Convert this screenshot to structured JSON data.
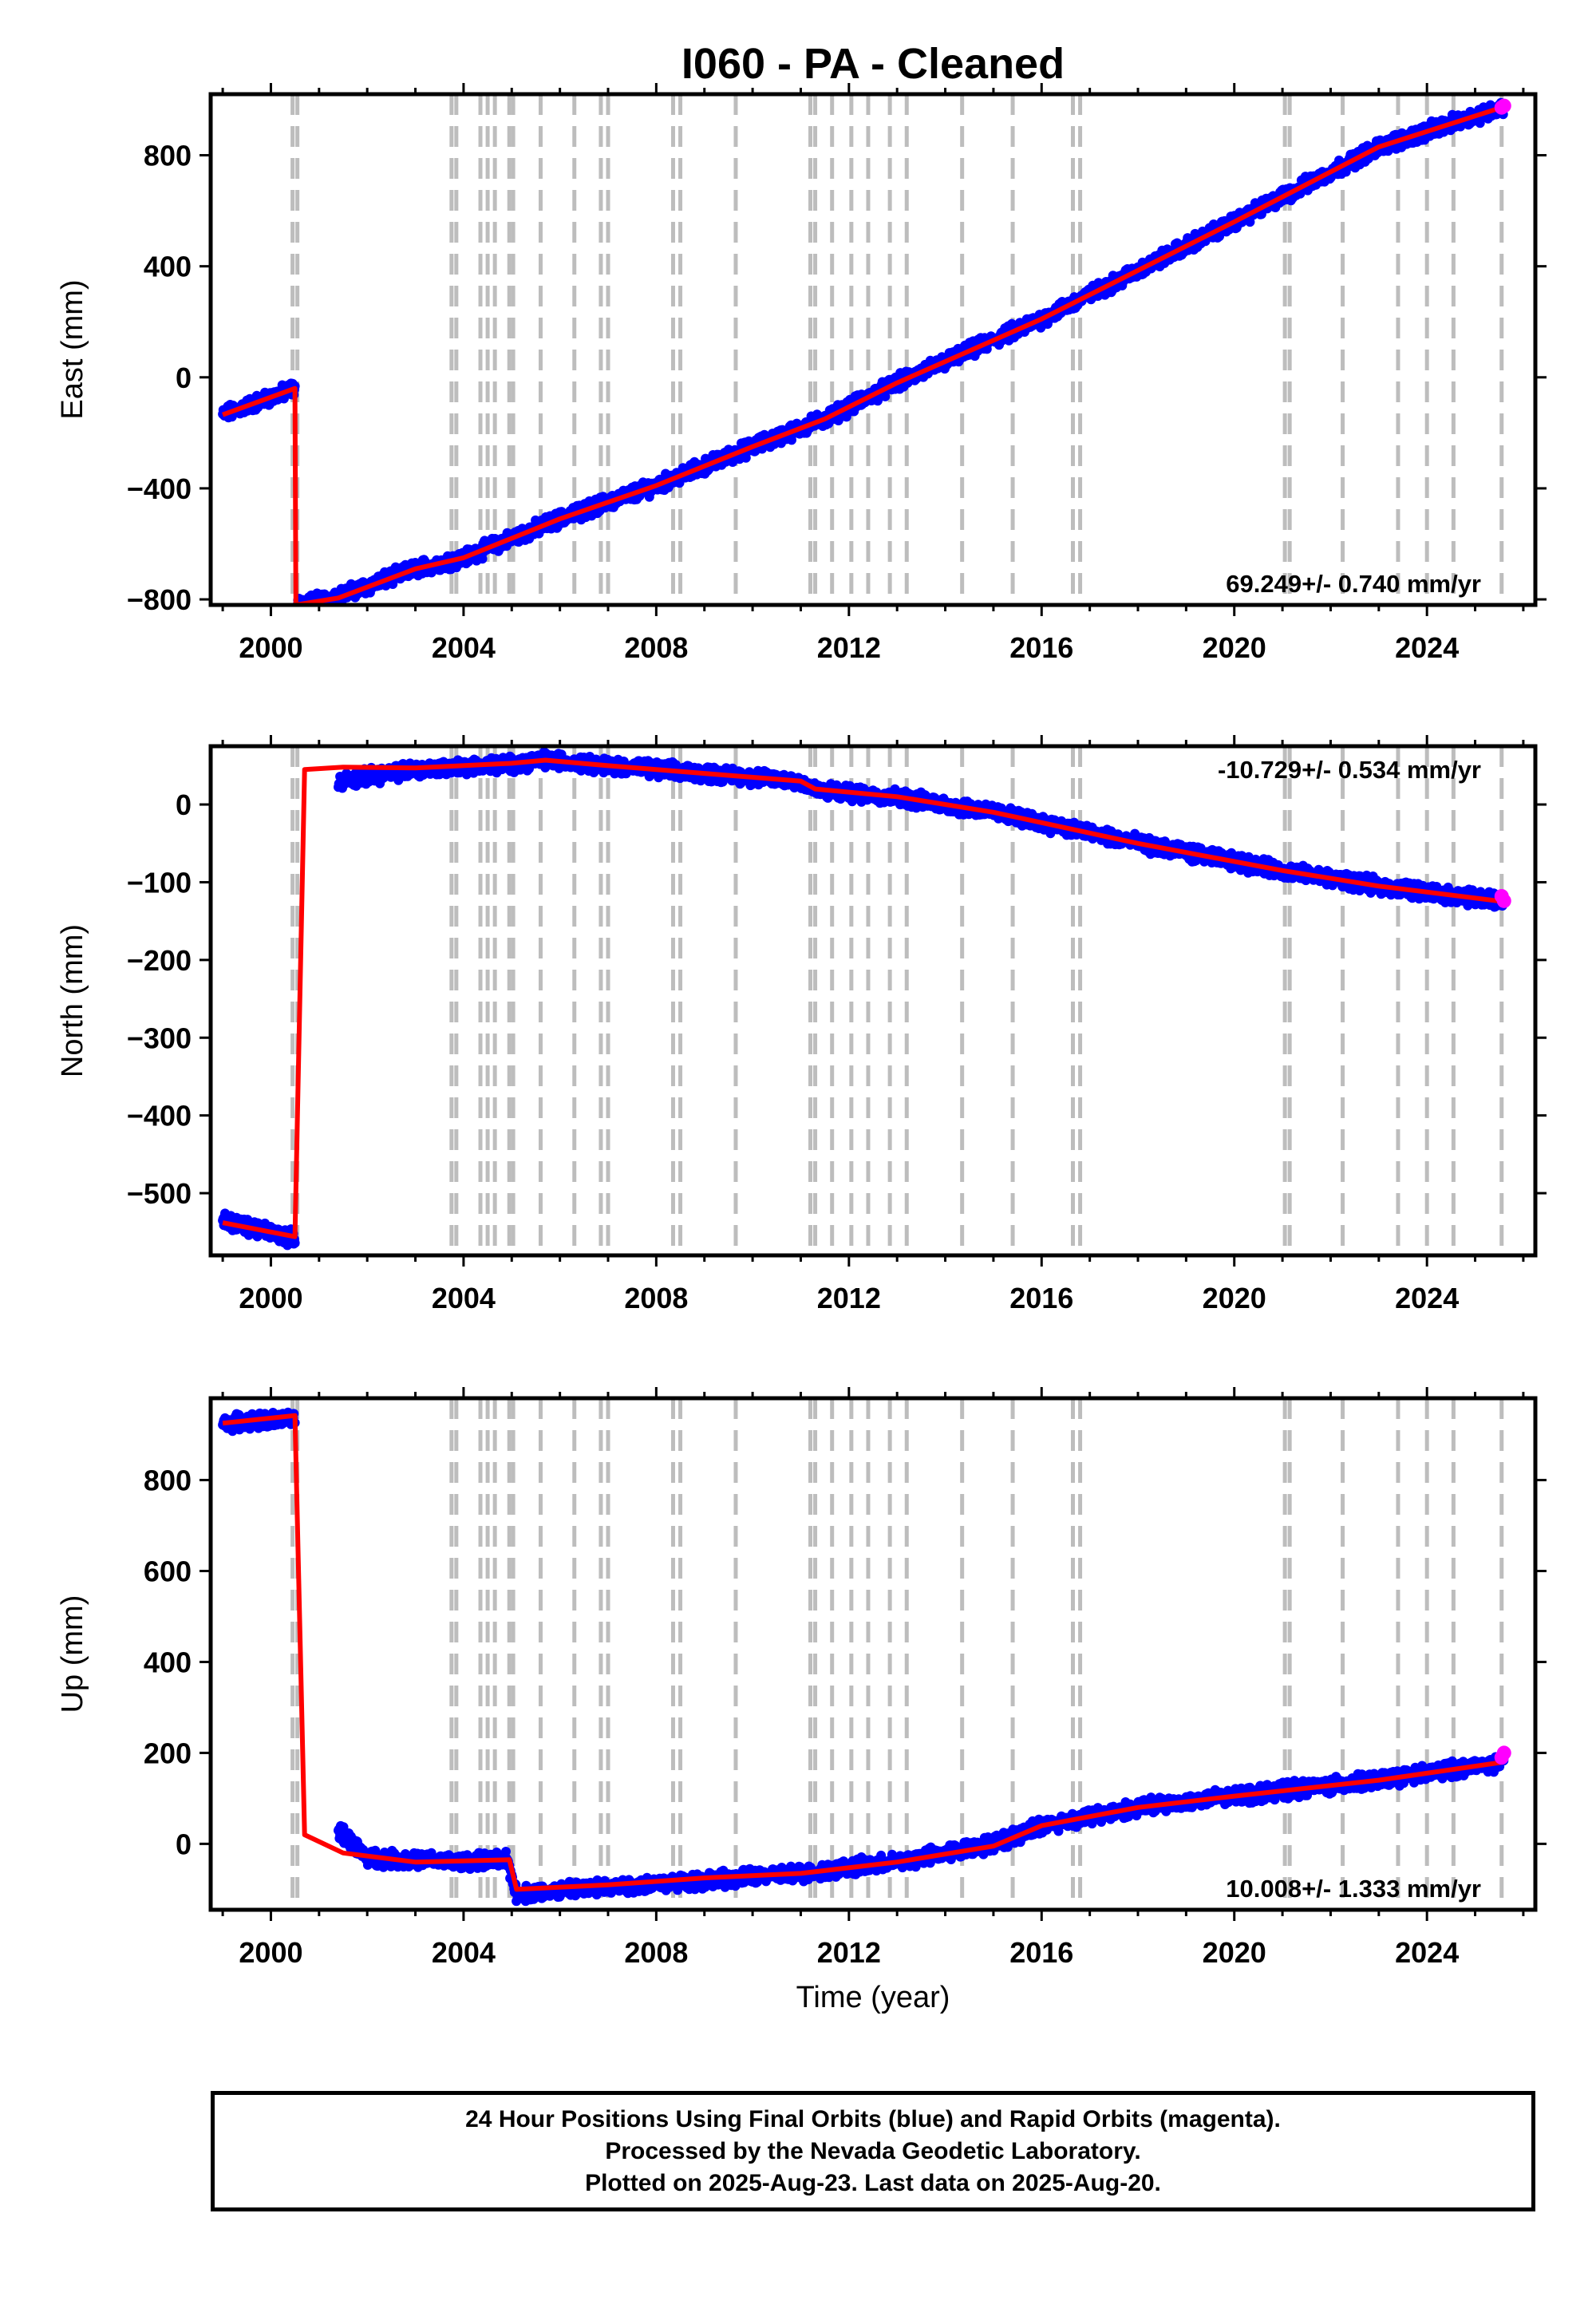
{
  "chart_data": {
    "type": "scatter",
    "title": "I060  - PA - Cleaned",
    "xlabel": "Time (year)",
    "xlim": [
      1998.75,
      2026.25
    ],
    "xticks": [
      2000,
      2004,
      2008,
      2012,
      2016,
      2020,
      2024
    ],
    "grid": false,
    "colors": {
      "final_orbits": "#0000ff",
      "rapid_orbits": "#ff00ff",
      "model": "#ff0000",
      "events": "#bdbdbd"
    },
    "event_lines": [
      2000.45,
      2000.55,
      2003.75,
      2003.85,
      2004.35,
      2004.5,
      2004.65,
      2004.95,
      2005.03,
      2005.6,
      2006.3,
      2006.85,
      2007.0,
      2008.35,
      2008.5,
      2009.65,
      2011.2,
      2011.3,
      2011.65,
      2012.05,
      2012.4,
      2012.85,
      2013.2,
      2014.35,
      2015.4,
      2016.65,
      2016.8,
      2021.05,
      2021.15,
      2022.25,
      2023.4,
      2024.0,
      2024.55,
      2025.55
    ],
    "panels": [
      {
        "ylabel": "East (mm)",
        "ylim": [
          -820,
          1020
        ],
        "yticks": [
          -800,
          -400,
          0,
          400,
          800
        ],
        "rate": "69.249+/- 0.740 mm/yr",
        "rate_position": "bottom-right",
        "series": [
          {
            "segment": [
              [
                1999.0,
                -135
              ],
              [
                2000.5,
                -40
              ]
            ]
          },
          {
            "segment": [
              [
                2000.55,
                -820
              ],
              [
                2001.4,
                -790
              ],
              [
                2003.0,
                -690
              ],
              [
                2004.0,
                -650
              ],
              [
                2006.0,
                -510
              ],
              [
                2008.0,
                -390
              ],
              [
                2010.0,
                -250
              ],
              [
                2011.5,
                -150
              ],
              [
                2013.0,
                -20
              ],
              [
                2016.0,
                210
              ],
              [
                2020.0,
                560
              ],
              [
                2023.0,
                830
              ],
              [
                2025.6,
                975
              ]
            ]
          }
        ],
        "model": [
          [
            1999.0,
            -135
          ],
          [
            2000.5,
            -40
          ],
          [
            2000.52,
            -820
          ],
          [
            2001.4,
            -795
          ],
          [
            2003.0,
            -690
          ],
          [
            2004.0,
            -650
          ],
          [
            2006.0,
            -510
          ],
          [
            2008.0,
            -390
          ],
          [
            2010.0,
            -250
          ],
          [
            2011.5,
            -150
          ],
          [
            2013.0,
            -20
          ],
          [
            2016.0,
            210
          ],
          [
            2020.0,
            560
          ],
          [
            2023.0,
            830
          ],
          [
            2025.6,
            975
          ]
        ],
        "rapid": [
          [
            2025.55,
            972
          ],
          [
            2025.6,
            978
          ]
        ]
      },
      {
        "ylabel": "North (mm)",
        "ylim": [
          -580,
          75
        ],
        "yticks": [
          -500,
          -400,
          -300,
          -200,
          -100,
          0
        ],
        "rate": "-10.729+/- 0.534 mm/yr",
        "rate_position": "top-right",
        "series": [
          {
            "segment": [
              [
                1999.0,
                -535
              ],
              [
                2000.5,
                -558
              ]
            ]
          },
          {
            "segment": [
              [
                2001.4,
                30
              ],
              [
                2003.0,
                45
              ],
              [
                2005.0,
                52
              ],
              [
                2005.7,
                58
              ],
              [
                2007.0,
                50
              ],
              [
                2009.0,
                40
              ],
              [
                2011.0,
                30
              ],
              [
                2011.3,
                18
              ],
              [
                2013.0,
                10
              ],
              [
                2015.0,
                -10
              ],
              [
                2018.0,
                -50
              ],
              [
                2021.0,
                -85
              ],
              [
                2023.0,
                -105
              ],
              [
                2025.6,
                -125
              ]
            ]
          }
        ],
        "model": [
          [
            1999.0,
            -538
          ],
          [
            2000.5,
            -556
          ],
          [
            2000.7,
            45
          ],
          [
            2001.5,
            48
          ],
          [
            2003.0,
            47
          ],
          [
            2005.0,
            53
          ],
          [
            2005.7,
            57
          ],
          [
            2007.0,
            50
          ],
          [
            2009.0,
            40
          ],
          [
            2011.0,
            30
          ],
          [
            2011.3,
            20
          ],
          [
            2013.0,
            10
          ],
          [
            2015.0,
            -10
          ],
          [
            2018.0,
            -50
          ],
          [
            2021.0,
            -85
          ],
          [
            2023.0,
            -105
          ],
          [
            2025.6,
            -125
          ]
        ],
        "rapid": [
          [
            2025.55,
            -118
          ],
          [
            2025.6,
            -124
          ]
        ]
      },
      {
        "ylabel": "Up (mm)",
        "ylim": [
          -145,
          980
        ],
        "yticks": [
          0,
          200,
          400,
          600,
          800
        ],
        "rate": "10.008+/- 1.333 mm/yr",
        "rate_position": "bottom-right",
        "series": [
          {
            "segment": [
              [
                1999.0,
                925
              ],
              [
                2000.5,
                935
              ]
            ]
          },
          {
            "segment": [
              [
                2001.4,
                30
              ],
              [
                2002.0,
                -30
              ],
              [
                2004.0,
                -40
              ],
              [
                2004.9,
                -35
              ],
              [
                2005.1,
                -110
              ],
              [
                2007.0,
                -95
              ],
              [
                2009.0,
                -80
              ],
              [
                2011.0,
                -65
              ],
              [
                2013.0,
                -40
              ],
              [
                2015.0,
                0
              ],
              [
                2016.0,
                40
              ],
              [
                2018.0,
                80
              ],
              [
                2020.0,
                105
              ],
              [
                2023.0,
                140
              ],
              [
                2025.6,
                180
              ]
            ]
          }
        ],
        "model": [
          [
            1999.0,
            925
          ],
          [
            2000.5,
            942
          ],
          [
            2000.7,
            20
          ],
          [
            2001.5,
            -20
          ],
          [
            2003.0,
            -40
          ],
          [
            2004.95,
            -35
          ],
          [
            2005.1,
            -100
          ],
          [
            2007.0,
            -90
          ],
          [
            2009.0,
            -75
          ],
          [
            2011.0,
            -65
          ],
          [
            2013.0,
            -40
          ],
          [
            2015.0,
            -5
          ],
          [
            2016.0,
            40
          ],
          [
            2018.0,
            80
          ],
          [
            2020.0,
            105
          ],
          [
            2023.0,
            140
          ],
          [
            2025.6,
            180
          ]
        ],
        "rapid": [
          [
            2025.55,
            190
          ],
          [
            2025.6,
            200
          ]
        ]
      }
    ]
  },
  "footer": {
    "line1": "24 Hour Positions Using Final Orbits (blue) and Rapid Orbits (magenta).",
    "line2": "Processed by the Nevada Geodetic Laboratory.",
    "line3": "Plotted on 2025-Aug-23. Last data on 2025-Aug-20."
  }
}
